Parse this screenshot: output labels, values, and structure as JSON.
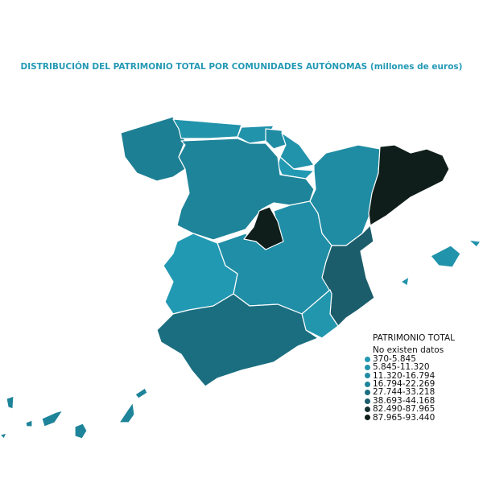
{
  "title": "DISTRIBUCIÓN DEL PATRIMONIO TOTAL POR COMUNIDADES AUTÓNOMAS (millones de euros)",
  "legend": {
    "title": "PATRIMONIO TOTAL",
    "items": [
      {
        "label": "No existen datos",
        "color": null
      },
      {
        "label": "370-5.845",
        "color": "#2299b3"
      },
      {
        "label": "5.845-11.320",
        "color": "#2193ab"
      },
      {
        "label": "11.320-16.794",
        "color": "#1f8ca3"
      },
      {
        "label": "16.794-22.269",
        "color": "#1e8499"
      },
      {
        "label": "27.744-33.218",
        "color": "#1b6e80"
      },
      {
        "label": "38.693-44.168",
        "color": "#1b5d6b"
      },
      {
        "label": "82.490-87.965",
        "color": "#13302e"
      },
      {
        "label": "87.965-93.440",
        "color": "#0f1e1a"
      }
    ]
  },
  "regions": {
    "galicia": "#1d7f93",
    "asturias": "#2193ab",
    "cantabria": "#2193ab",
    "pais_vasco": "#1f8ca3",
    "navarra": "#2193ab",
    "la_rioja": "#2299b3",
    "castilla_y_leon": "#1e8499",
    "aragon": "#1f8ca3",
    "cataluna": "#0f1e1a",
    "madrid": "#0f1e1a",
    "castilla_la_mancha": "#1f8ea6",
    "extremadura": "#2299b3",
    "comunidad_valenciana": "#1b5d6b",
    "murcia": "#2196ad",
    "andalucia": "#1b6e80",
    "baleares": "#2193ab",
    "canarias": "#1e8499"
  }
}
